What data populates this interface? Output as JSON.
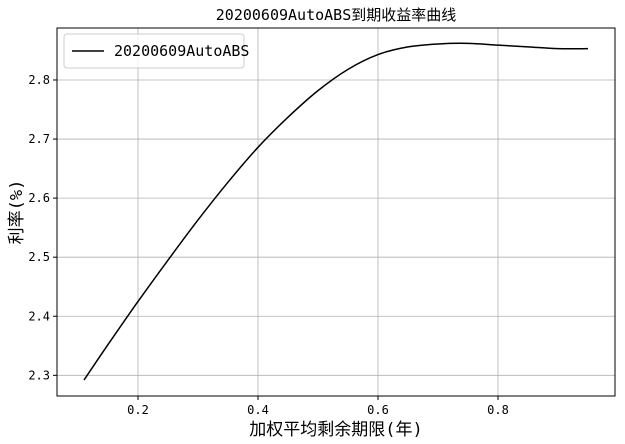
{
  "chart_data": {
    "type": "line",
    "title": "20200609AutoABS到期收益率曲线",
    "xlabel": "加权平均剩余期限(年)",
    "ylabel": "利率(%)",
    "xlim": [
      0.065,
      0.995
    ],
    "ylim": [
      2.265,
      2.888
    ],
    "xticks": [
      0.2,
      0.4,
      0.6,
      0.8
    ],
    "yticks": [
      2.3,
      2.4,
      2.5,
      2.6,
      2.7,
      2.8
    ],
    "xtick_labels": [
      "0.2",
      "0.4",
      "0.6",
      "0.8"
    ],
    "ytick_labels": [
      "2.3",
      "2.4",
      "2.5",
      "2.6",
      "2.7",
      "2.8"
    ],
    "grid": true,
    "legend_position": "top-left",
    "series": [
      {
        "name": "20200609AutoABS",
        "color": "#000000",
        "x": [
          0.11,
          0.15,
          0.2,
          0.25,
          0.3,
          0.35,
          0.4,
          0.45,
          0.5,
          0.55,
          0.6,
          0.65,
          0.7,
          0.75,
          0.8,
          0.85,
          0.9,
          0.95
        ],
        "y": [
          2.292,
          2.352,
          2.425,
          2.495,
          2.563,
          2.627,
          2.686,
          2.737,
          2.782,
          2.818,
          2.843,
          2.856,
          2.861,
          2.862,
          2.859,
          2.856,
          2.853,
          2.853
        ]
      }
    ]
  }
}
